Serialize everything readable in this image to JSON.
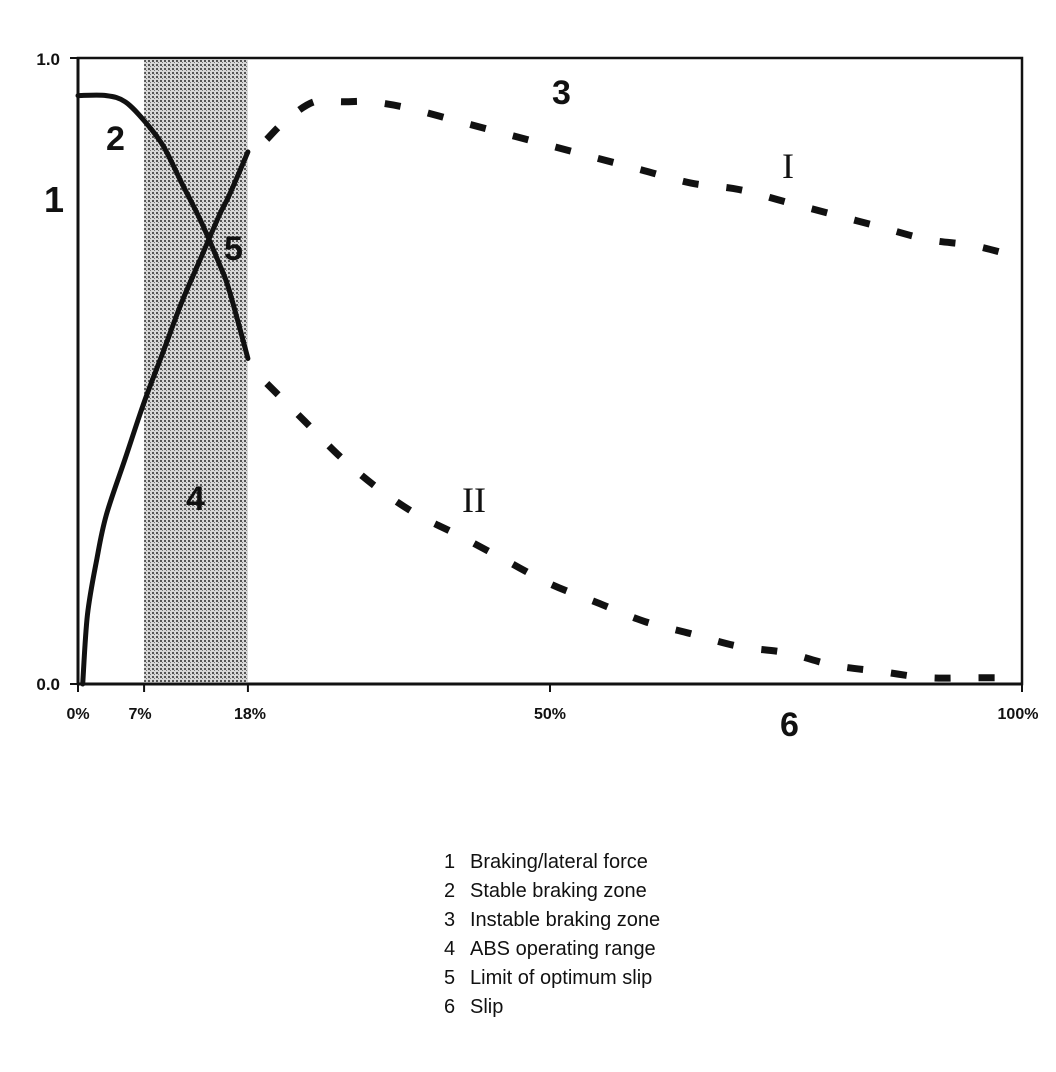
{
  "chart_data": {
    "type": "line",
    "title": "",
    "xlabel": "",
    "ylabel": "",
    "xlim": [
      0,
      100
    ],
    "ylim": [
      0.0,
      1.0
    ],
    "y_tick_labels": [
      {
        "value": 1.0,
        "label": "1.0"
      },
      {
        "value": 0.0,
        "label": "0.0"
      }
    ],
    "x_tick_labels": [
      {
        "value": 0,
        "label": "0%"
      },
      {
        "value": 7,
        "label": "7%"
      },
      {
        "value": 18,
        "label": "18%"
      },
      {
        "value": 50,
        "label": "50%"
      },
      {
        "value": 100,
        "label": "100%"
      }
    ],
    "shaded_region": {
      "x_start": 7,
      "x_end": 18,
      "label": "4"
    },
    "series": [
      {
        "name": "I",
        "stable": {
          "x": [
            0.5,
            1,
            2,
            3,
            5,
            7,
            9,
            11,
            13,
            15,
            16,
            18
          ],
          "y": [
            0.0,
            0.11,
            0.2,
            0.27,
            0.36,
            0.45,
            0.53,
            0.61,
            0.68,
            0.75,
            0.78,
            0.85
          ]
        },
        "unstable": {
          "x": [
            20,
            22,
            25,
            28,
            31,
            35,
            40,
            45,
            50,
            55,
            60,
            65,
            70,
            75,
            80,
            85,
            90,
            95,
            100
          ],
          "y": [
            0.87,
            0.9,
            0.93,
            0.93,
            0.93,
            0.92,
            0.9,
            0.88,
            0.86,
            0.84,
            0.82,
            0.8,
            0.79,
            0.77,
            0.75,
            0.73,
            0.71,
            0.7,
            0.68
          ]
        }
      },
      {
        "name": "II",
        "stable": {
          "x": [
            0,
            3,
            5,
            7,
            9,
            11,
            13,
            15,
            16,
            18
          ],
          "y": [
            0.94,
            0.94,
            0.93,
            0.9,
            0.86,
            0.8,
            0.74,
            0.67,
            0.63,
            0.52
          ]
        },
        "unstable": {
          "x": [
            20,
            24,
            28,
            32,
            36,
            40,
            45,
            50,
            55,
            60,
            65,
            70,
            75,
            80,
            85,
            90,
            95,
            100
          ],
          "y": [
            0.48,
            0.42,
            0.36,
            0.31,
            0.27,
            0.24,
            0.2,
            0.16,
            0.13,
            0.1,
            0.08,
            0.06,
            0.05,
            0.03,
            0.02,
            0.01,
            0.01,
            0.01
          ]
        }
      }
    ],
    "callouts": [
      {
        "label": "1",
        "meaning": "Braking/lateral force"
      },
      {
        "label": "2",
        "meaning": "Stable braking zone"
      },
      {
        "label": "3",
        "meaning": "Instable braking zone"
      },
      {
        "label": "4",
        "meaning": "ABS operating range"
      },
      {
        "label": "5",
        "meaning": "Limit of optimum slip"
      },
      {
        "label": "6",
        "meaning": "Slip"
      }
    ],
    "grid": false,
    "legend_placement": "bottom-center"
  },
  "legend": {
    "items": [
      {
        "num": "1",
        "text": "Braking/lateral force"
      },
      {
        "num": "2",
        "text": "Stable braking zone"
      },
      {
        "num": "3",
        "text": "Instable braking zone"
      },
      {
        "num": "4",
        "text": "ABS operating range"
      },
      {
        "num": "5",
        "text": "Limit of optimum slip"
      },
      {
        "num": "6",
        "text": "Slip"
      }
    ]
  },
  "colors": {
    "curve": "#111111",
    "shade": "#9a9a9a",
    "axis": "#111111"
  }
}
